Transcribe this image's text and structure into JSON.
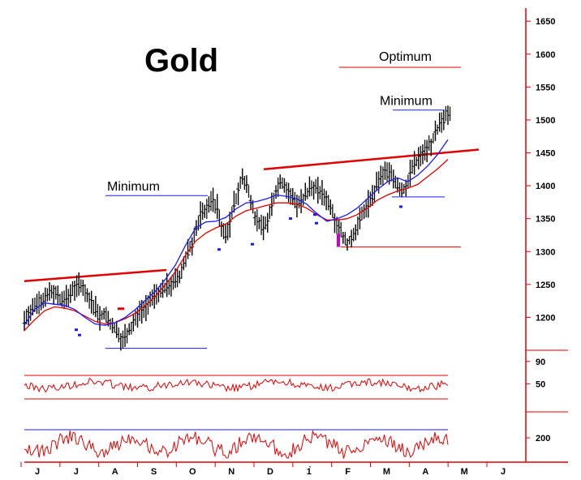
{
  "chart_data": [
    {
      "type": "ohlc",
      "panel": "price",
      "title": "Gold",
      "ylim": [
        1150,
        1665
      ],
      "yticks": [
        1200,
        1250,
        1300,
        1350,
        1400,
        1450,
        1500,
        1550,
        1600,
        1650
      ],
      "months": [
        "J",
        "J",
        "A",
        "S",
        "O",
        "N",
        "D",
        "1̀",
        "F",
        "M",
        "A",
        "M",
        "J"
      ],
      "annotations": [
        {
          "text": "Optimum",
          "level": 1580
        },
        {
          "text": "Minimum",
          "level": 1515
        },
        {
          "text": "Minimum",
          "level": 1385
        }
      ],
      "price_series": [
        1195,
        1208,
        1212,
        1220,
        1225,
        1228,
        1238,
        1240,
        1232,
        1225,
        1228,
        1236,
        1244,
        1250,
        1246,
        1236,
        1226,
        1212,
        1200,
        1205,
        1195,
        1188,
        1178,
        1168,
        1172,
        1182,
        1192,
        1205,
        1212,
        1215,
        1225,
        1232,
        1236,
        1240,
        1246,
        1250,
        1255,
        1262,
        1280,
        1298,
        1312,
        1335,
        1356,
        1362,
        1372,
        1378,
        1366,
        1336,
        1326,
        1342,
        1372,
        1392,
        1412,
        1400,
        1378,
        1352,
        1342,
        1338,
        1342,
        1372,
        1392,
        1408,
        1402,
        1390,
        1382,
        1372,
        1376,
        1386,
        1396,
        1398,
        1392,
        1388,
        1382,
        1370,
        1350,
        1338,
        1320,
        1312,
        1322,
        1332,
        1346,
        1362,
        1372,
        1382,
        1400,
        1412,
        1421,
        1418,
        1410,
        1400,
        1392,
        1400,
        1420,
        1432,
        1442,
        1450,
        1456,
        1462,
        1480,
        1492,
        1500,
        1512
      ],
      "ma_blue": [
        1188,
        1212,
        1222,
        1220,
        1218,
        1212,
        1200,
        1190,
        1188,
        1192,
        1200,
        1212,
        1226,
        1240,
        1258,
        1280,
        1310,
        1336,
        1345,
        1346,
        1352,
        1365,
        1374,
        1376,
        1380,
        1386,
        1384,
        1380,
        1372,
        1358,
        1346,
        1350,
        1356,
        1366,
        1380,
        1394,
        1406,
        1412,
        1406,
        1416,
        1430,
        1448,
        1470
      ],
      "ma_red": [
        1180,
        1196,
        1210,
        1216,
        1214,
        1210,
        1202,
        1194,
        1190,
        1192,
        1198,
        1206,
        1218,
        1232,
        1250,
        1270,
        1295,
        1316,
        1328,
        1336,
        1342,
        1354,
        1362,
        1366,
        1370,
        1374,
        1374,
        1372,
        1366,
        1356,
        1348,
        1348,
        1350,
        1356,
        1366,
        1378,
        1386,
        1392,
        1396,
        1402,
        1414,
        1426,
        1440
      ],
      "resistance_lines": [
        {
          "from": [
            0,
            1255
          ],
          "to": [
            205,
            1272
          ]
        },
        {
          "from": [
            295,
            1425
          ],
          "to": [
            590,
            1455
          ]
        }
      ],
      "support_lines": [
        {
          "from": [
            130,
            1153
          ],
          "to": [
            255,
            1153
          ],
          "color": "#1a1aff"
        },
        {
          "from": [
            483,
            1383
          ],
          "to": [
            548,
            1383
          ],
          "color": "#1a1aff"
        },
        {
          "from": [
            420,
            1307
          ],
          "to": [
            568,
            1307
          ],
          "color": "#e00000"
        }
      ]
    },
    {
      "type": "line",
      "panel": "oscillator-1",
      "yticks": [
        90,
        50
      ],
      "levels": [
        82,
        20
      ]
    },
    {
      "type": "line",
      "panel": "oscillator-2",
      "yticks": [
        200
      ]
    }
  ],
  "colors": {
    "blue": "#1a1aff",
    "red": "#e00000",
    "magenta": "#cc00cc",
    "black": "#000000"
  }
}
